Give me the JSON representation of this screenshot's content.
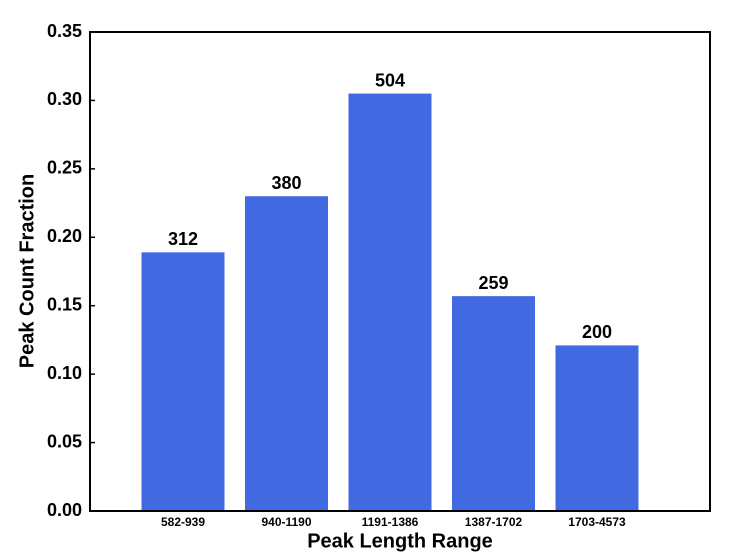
{
  "chart_data": {
    "type": "bar",
    "x_label": "Peak Length Range",
    "y_label": "Peak Count Fraction",
    "categories": [
      "582-939",
      "940-1190",
      "1191-1386",
      "1387-1702",
      "1703-4573"
    ],
    "values": [
      0.189,
      0.23,
      0.305,
      0.157,
      0.121
    ],
    "counts": [
      312,
      380,
      504,
      259,
      200
    ],
    "color": "#4169e1",
    "ylim": [
      0,
      0.35
    ],
    "yticks": [
      {
        "value": 0,
        "label": "0.00"
      },
      {
        "value": 0.05,
        "label": "0.05"
      },
      {
        "value": 0.1,
        "label": "0.10"
      },
      {
        "value": 0.15,
        "label": "0.15"
      },
      {
        "value": 0.2,
        "label": "0.20"
      },
      {
        "value": 0.25,
        "label": "0.25"
      },
      {
        "value": 0.3,
        "label": "0.30"
      },
      {
        "value": 0.35,
        "label": "0.35"
      }
    ],
    "grid": false
  }
}
